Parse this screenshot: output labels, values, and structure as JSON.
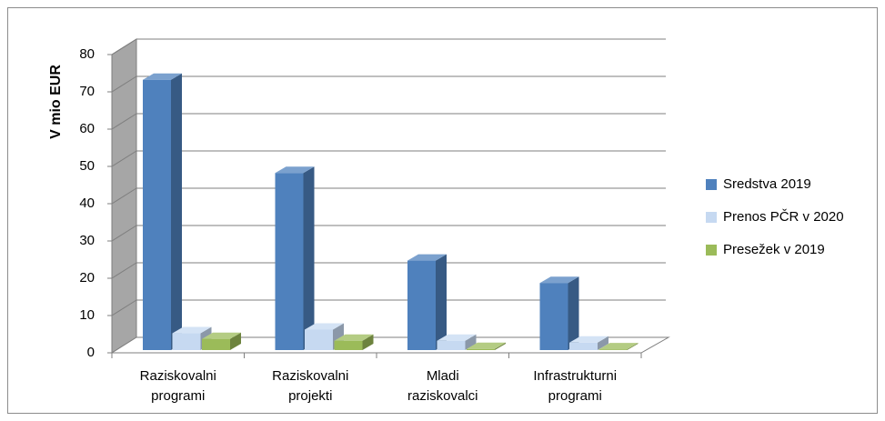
{
  "chart_data": {
    "type": "bar3d",
    "ylabel": "V mio EUR",
    "categories": [
      "Raziskovalni programi",
      "Raziskovalni projekti",
      "Mladi raziskovalci",
      "Infrastrukturni programi"
    ],
    "series": [
      {
        "name": "Sredstva 2019",
        "color": "#4f81bd",
        "values": [
          72.5,
          47.5,
          24,
          18
        ]
      },
      {
        "name": "Prenos PČR v 2020",
        "color": "#c6d9f1",
        "values": [
          4.5,
          5.5,
          2.5,
          2
        ]
      },
      {
        "name": "Presežek v 2019",
        "color": "#9bbb59",
        "values": [
          3,
          2.5,
          0.3,
          0.2
        ]
      }
    ],
    "ylim": [
      0,
      80
    ],
    "yticks": [
      0,
      10,
      20,
      30,
      40,
      50,
      60,
      70,
      80
    ],
    "grid": true,
    "legend": "right"
  }
}
